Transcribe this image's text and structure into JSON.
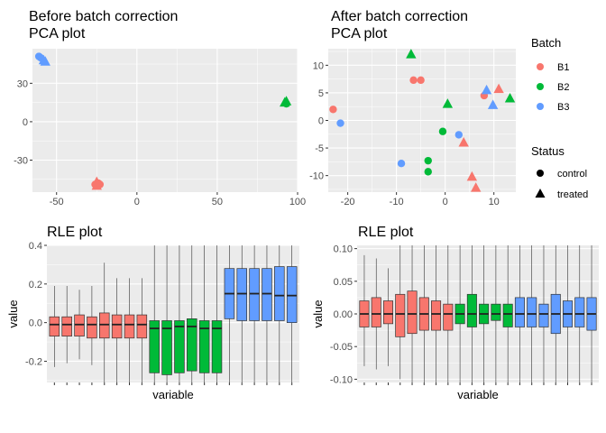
{
  "colors": {
    "B1": "#F8766D",
    "B2": "#00BA38",
    "B3": "#619CFF"
  },
  "legend": {
    "batch_title": "Batch",
    "batch_items": [
      "B1",
      "B2",
      "B3"
    ],
    "status_title": "Status",
    "status_items": [
      "control",
      "treated"
    ]
  },
  "chart_data": [
    {
      "type": "scatter",
      "title": "Before batch correction",
      "subtitle": "PCA plot",
      "xlim": [
        -65,
        100
      ],
      "ylim": [
        -55,
        57
      ],
      "xticks": [
        -50,
        0,
        50,
        100
      ],
      "yticks": [
        -30,
        0,
        30
      ],
      "points": [
        {
          "x": -61,
          "y": 51,
          "batch": "B3",
          "status": "control"
        },
        {
          "x": -60,
          "y": 50,
          "batch": "B3",
          "status": "control"
        },
        {
          "x": -57,
          "y": 47,
          "batch": "B3",
          "status": "treated"
        },
        {
          "x": -58,
          "y": 48,
          "batch": "B3",
          "status": "treated"
        },
        {
          "x": 92,
          "y": 15,
          "batch": "B2",
          "status": "treated"
        },
        {
          "x": 93,
          "y": 14,
          "batch": "B2",
          "status": "control"
        },
        {
          "x": 93,
          "y": 16,
          "batch": "B2",
          "status": "treated"
        },
        {
          "x": -26,
          "y": -49,
          "batch": "B1",
          "status": "control"
        },
        {
          "x": -24,
          "y": -48,
          "batch": "B1",
          "status": "control"
        },
        {
          "x": -25,
          "y": -50,
          "batch": "B1",
          "status": "treated"
        },
        {
          "x": -23,
          "y": -49,
          "batch": "B1",
          "status": "control"
        },
        {
          "x": -25,
          "y": -47,
          "batch": "B1",
          "status": "treated"
        }
      ]
    },
    {
      "type": "scatter",
      "title": "After batch correction",
      "subtitle": "PCA plot",
      "xlim": [
        -24,
        14.5
      ],
      "ylim": [
        -13,
        13
      ],
      "xticks": [
        -20,
        -10,
        0,
        10
      ],
      "yticks": [
        -10,
        -5,
        0,
        5,
        10
      ],
      "points": [
        {
          "x": -23,
          "y": 2,
          "batch": "B1",
          "status": "control"
        },
        {
          "x": -21.5,
          "y": -0.5,
          "batch": "B3",
          "status": "control"
        },
        {
          "x": -7,
          "y": 12,
          "batch": "B2",
          "status": "treated"
        },
        {
          "x": -6.5,
          "y": 7.3,
          "batch": "B1",
          "status": "control"
        },
        {
          "x": -5,
          "y": 7.3,
          "batch": "B1",
          "status": "control"
        },
        {
          "x": -3.5,
          "y": -7.3,
          "batch": "B2",
          "status": "control"
        },
        {
          "x": -3.5,
          "y": -9.3,
          "batch": "B2",
          "status": "control"
        },
        {
          "x": -9,
          "y": -7.8,
          "batch": "B3",
          "status": "control"
        },
        {
          "x": -0.5,
          "y": -2,
          "batch": "B2",
          "status": "control"
        },
        {
          "x": 0.5,
          "y": 3,
          "batch": "B2",
          "status": "treated"
        },
        {
          "x": 2.8,
          "y": -2.6,
          "batch": "B3",
          "status": "control"
        },
        {
          "x": 3.8,
          "y": -4,
          "batch": "B1",
          "status": "treated"
        },
        {
          "x": 5.5,
          "y": -10.2,
          "batch": "B1",
          "status": "treated"
        },
        {
          "x": 6.3,
          "y": -12.2,
          "batch": "B1",
          "status": "treated"
        },
        {
          "x": 8,
          "y": 4.5,
          "batch": "B1",
          "status": "control"
        },
        {
          "x": 8.5,
          "y": 5.5,
          "batch": "B3",
          "status": "treated"
        },
        {
          "x": 9.8,
          "y": 2.8,
          "batch": "B3",
          "status": "treated"
        },
        {
          "x": 11,
          "y": 5.7,
          "batch": "B1",
          "status": "treated"
        },
        {
          "x": 13.3,
          "y": 4,
          "batch": "B2",
          "status": "treated"
        }
      ]
    },
    {
      "type": "boxplot",
      "title": "RLE plot",
      "xlabel": "variable",
      "ylabel": "value",
      "ylim": [
        -0.31,
        0.4
      ],
      "yticks": [
        -0.2,
        0.0,
        0.2,
        0.4
      ],
      "boxes": [
        {
          "batch": "B1",
          "q1": -0.07,
          "median": -0.01,
          "q3": 0.03,
          "low": -0.23,
          "high": 0.19
        },
        {
          "batch": "B1",
          "q1": -0.07,
          "median": -0.01,
          "q3": 0.03,
          "low": -0.21,
          "high": 0.19
        },
        {
          "batch": "B1",
          "q1": -0.07,
          "median": -0.01,
          "q3": 0.04,
          "low": -0.19,
          "high": 0.17
        },
        {
          "batch": "B1",
          "q1": -0.08,
          "median": -0.01,
          "q3": 0.03,
          "low": -0.22,
          "high": 0.19
        },
        {
          "batch": "B1",
          "q1": -0.08,
          "median": -0.01,
          "q3": 0.05,
          "low": -0.31,
          "high": 0.31
        },
        {
          "batch": "B1",
          "q1": -0.08,
          "median": -0.01,
          "q3": 0.04,
          "low": -0.31,
          "high": 0.23
        },
        {
          "batch": "B1",
          "q1": -0.08,
          "median": -0.01,
          "q3": 0.04,
          "low": -0.31,
          "high": 0.23
        },
        {
          "batch": "B1",
          "q1": -0.08,
          "median": -0.01,
          "q3": 0.04,
          "low": -0.31,
          "high": 0.23
        },
        {
          "batch": "B2",
          "q1": -0.26,
          "median": -0.03,
          "q3": 0.01,
          "low": -0.31,
          "high": 0.4
        },
        {
          "batch": "B2",
          "q1": -0.27,
          "median": -0.03,
          "q3": 0.01,
          "low": -0.31,
          "high": 0.4
        },
        {
          "batch": "B2",
          "q1": -0.26,
          "median": -0.02,
          "q3": 0.01,
          "low": -0.31,
          "high": 0.4
        },
        {
          "batch": "B2",
          "q1": -0.25,
          "median": -0.02,
          "q3": 0.02,
          "low": -0.31,
          "high": 0.4
        },
        {
          "batch": "B2",
          "q1": -0.26,
          "median": -0.03,
          "q3": 0.01,
          "low": -0.31,
          "high": 0.4
        },
        {
          "batch": "B2",
          "q1": -0.26,
          "median": -0.03,
          "q3": 0.01,
          "low": -0.31,
          "high": 0.4
        },
        {
          "batch": "B3",
          "q1": 0.02,
          "median": 0.15,
          "q3": 0.28,
          "low": -0.31,
          "high": 0.4
        },
        {
          "batch": "B3",
          "q1": 0.01,
          "median": 0.15,
          "q3": 0.28,
          "low": -0.31,
          "high": 0.4
        },
        {
          "batch": "B3",
          "q1": 0.01,
          "median": 0.15,
          "q3": 0.28,
          "low": -0.31,
          "high": 0.4
        },
        {
          "batch": "B3",
          "q1": 0.01,
          "median": 0.15,
          "q3": 0.28,
          "low": -0.31,
          "high": 0.4
        },
        {
          "batch": "B3",
          "q1": 0.01,
          "median": 0.14,
          "q3": 0.29,
          "low": -0.31,
          "high": 0.4
        },
        {
          "batch": "B3",
          "q1": 0.0,
          "median": 0.14,
          "q3": 0.29,
          "low": -0.31,
          "high": 0.4
        }
      ]
    },
    {
      "type": "boxplot",
      "title": "RLE plot",
      "xlabel": "variable",
      "ylabel": "value",
      "ylim": [
        -0.105,
        0.105
      ],
      "yticks": [
        -0.1,
        -0.05,
        0.0,
        0.05,
        0.1
      ],
      "boxes": [
        {
          "batch": "B1",
          "q1": -0.02,
          "median": 0.0,
          "q3": 0.02,
          "low": -0.08,
          "high": 0.09
        },
        {
          "batch": "B1",
          "q1": -0.02,
          "median": 0.0,
          "q3": 0.025,
          "low": -0.085,
          "high": 0.085
        },
        {
          "batch": "B1",
          "q1": -0.015,
          "median": 0.0,
          "q3": 0.02,
          "low": -0.08,
          "high": 0.07
        },
        {
          "batch": "B1",
          "q1": -0.035,
          "median": 0.0,
          "q3": 0.03,
          "low": -0.1,
          "high": 0.105
        },
        {
          "batch": "B1",
          "q1": -0.03,
          "median": 0.0,
          "q3": 0.035,
          "low": -0.105,
          "high": 0.105
        },
        {
          "batch": "B1",
          "q1": -0.025,
          "median": 0.0,
          "q3": 0.025,
          "low": -0.105,
          "high": 0.105
        },
        {
          "batch": "B1",
          "q1": -0.025,
          "median": 0.0,
          "q3": 0.02,
          "low": -0.105,
          "high": 0.105
        },
        {
          "batch": "B1",
          "q1": -0.025,
          "median": 0.0,
          "q3": 0.015,
          "low": -0.105,
          "high": 0.105
        },
        {
          "batch": "B2",
          "q1": -0.015,
          "median": 0.0,
          "q3": 0.015,
          "low": -0.105,
          "high": 0.105
        },
        {
          "batch": "B2",
          "q1": -0.02,
          "median": 0.0,
          "q3": 0.03,
          "low": -0.105,
          "high": 0.105
        },
        {
          "batch": "B2",
          "q1": -0.015,
          "median": 0.0,
          "q3": 0.015,
          "low": -0.105,
          "high": 0.105
        },
        {
          "batch": "B2",
          "q1": -0.01,
          "median": 0.0,
          "q3": 0.015,
          "low": -0.105,
          "high": 0.105
        },
        {
          "batch": "B2",
          "q1": -0.02,
          "median": 0.0,
          "q3": 0.015,
          "low": -0.105,
          "high": 0.105
        },
        {
          "batch": "B3",
          "q1": -0.02,
          "median": 0.0,
          "q3": 0.025,
          "low": -0.105,
          "high": 0.105
        },
        {
          "batch": "B3",
          "q1": -0.02,
          "median": 0.0,
          "q3": 0.025,
          "low": -0.105,
          "high": 0.105
        },
        {
          "batch": "B3",
          "q1": -0.02,
          "median": 0.0,
          "q3": 0.015,
          "low": -0.105,
          "high": 0.105
        },
        {
          "batch": "B3",
          "q1": -0.03,
          "median": 0.0,
          "q3": 0.03,
          "low": -0.105,
          "high": 0.105
        },
        {
          "batch": "B3",
          "q1": -0.02,
          "median": 0.0,
          "q3": 0.02,
          "low": -0.105,
          "high": 0.105
        },
        {
          "batch": "B3",
          "q1": -0.02,
          "median": 0.0,
          "q3": 0.025,
          "low": -0.105,
          "high": 0.105
        },
        {
          "batch": "B3",
          "q1": -0.025,
          "median": 0.0,
          "q3": 0.025,
          "low": -0.105,
          "high": 0.105
        }
      ]
    }
  ]
}
